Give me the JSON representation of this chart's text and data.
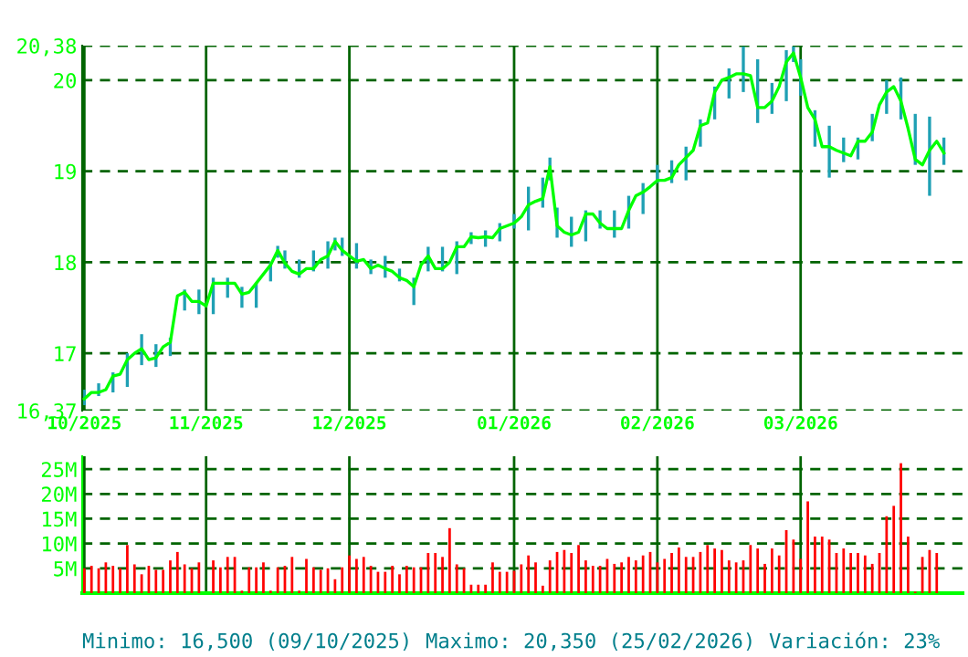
{
  "chart_data": [
    {
      "type": "line",
      "ylim": [
        16.37,
        20.38
      ],
      "grid": true,
      "categories": [
        "10/2025",
        null,
        null,
        null,
        null,
        null,
        null,
        null,
        null,
        null,
        null,
        null,
        null,
        null,
        null,
        null,
        null,
        "11/2025",
        null,
        null,
        null,
        null,
        null,
        null,
        null,
        null,
        null,
        null,
        null,
        null,
        null,
        null,
        null,
        null,
        null,
        null,
        null,
        "12/2025",
        null,
        null,
        null,
        null,
        null,
        null,
        null,
        null,
        null,
        null,
        null,
        null,
        null,
        null,
        null,
        null,
        null,
        null,
        null,
        null,
        null,
        null,
        "01/2026",
        null,
        null,
        null,
        null,
        null,
        null,
        null,
        null,
        null,
        null,
        null,
        null,
        null,
        null,
        null,
        null,
        null,
        null,
        null,
        "02/2026",
        null,
        null,
        null,
        null,
        null,
        null,
        null,
        null,
        null,
        null,
        null,
        null,
        null,
        null,
        null,
        null,
        null,
        null,
        null,
        "03/2026",
        null,
        null,
        null,
        null,
        null,
        null,
        null,
        null,
        null,
        null,
        null,
        null,
        null,
        null,
        null,
        null,
        null,
        null,
        null,
        null
      ],
      "yticks": [
        {
          "value": 16.37,
          "label": "16,37"
        },
        17,
        18,
        19,
        20,
        {
          "value": 20.38,
          "label": "20,38"
        }
      ],
      "series": [
        {
          "color": "#00ff00",
          "values": [
            16.5,
            16.57,
            16.57,
            16.6,
            16.75,
            16.77,
            16.93,
            17.0,
            17.05,
            16.93,
            16.95,
            17.07,
            17.12,
            17.63,
            17.67,
            17.57,
            17.57,
            17.52,
            17.77,
            17.77,
            17.77,
            17.77,
            17.65,
            17.67,
            17.77,
            17.87,
            17.97,
            18.13,
            17.99,
            17.9,
            17.87,
            17.93,
            17.93,
            18.03,
            18.07,
            18.23,
            18.13,
            18.07,
            18.01,
            18.03,
            17.93,
            17.97,
            17.93,
            17.9,
            17.83,
            17.8,
            17.73,
            17.97,
            18.07,
            17.93,
            17.93,
            18.0,
            18.17,
            18.17,
            18.28,
            18.27,
            18.28,
            18.27,
            18.37,
            18.4,
            18.43,
            18.5,
            18.63,
            18.67,
            18.7,
            19.05,
            18.4,
            18.33,
            18.3,
            18.33,
            18.53,
            18.53,
            18.43,
            18.37,
            18.37,
            18.37,
            18.57,
            18.73,
            18.77,
            18.83,
            18.9,
            18.9,
            18.93,
            19.07,
            19.15,
            19.23,
            19.5,
            19.53,
            19.87,
            20.0,
            20.03,
            20.07,
            20.07,
            20.05,
            19.7,
            19.7,
            19.77,
            19.93,
            20.2,
            20.3,
            20.03,
            19.7,
            19.57,
            19.27,
            19.27,
            19.23,
            19.2,
            19.17,
            19.33,
            19.33,
            19.43,
            19.73,
            19.87,
            19.93,
            19.77,
            19.47,
            19.13,
            19.07,
            19.23,
            19.33,
            19.2
          ],
          "errors": [
            [
              16.43,
              16.6
            ],
            null,
            [
              16.53,
              16.67
            ],
            null,
            [
              16.57,
              16.79
            ],
            null,
            [
              16.63,
              17.0
            ],
            null,
            [
              16.87,
              17.21
            ],
            null,
            [
              16.85,
              17.1
            ],
            null,
            [
              16.97,
              17.17
            ],
            null,
            [
              17.47,
              17.7
            ],
            null,
            [
              17.43,
              17.7
            ],
            null,
            [
              17.43,
              17.83
            ],
            null,
            [
              17.61,
              17.83
            ],
            null,
            [
              17.5,
              17.73
            ],
            null,
            [
              17.5,
              17.77
            ],
            null,
            [
              17.79,
              18.0
            ],
            [
              18.05,
              18.18
            ],
            [
              17.93,
              18.13
            ],
            null,
            [
              17.83,
              18.03
            ],
            null,
            [
              17.9,
              18.13
            ],
            null,
            [
              17.93,
              18.23
            ],
            [
              18.13,
              18.27
            ],
            [
              18.07,
              18.27
            ],
            null,
            [
              17.93,
              18.21
            ],
            null,
            [
              17.87,
              18.03
            ],
            null,
            [
              17.83,
              18.07
            ],
            null,
            [
              17.79,
              17.93
            ],
            null,
            [
              17.53,
              17.83
            ],
            null,
            [
              17.9,
              18.17
            ],
            null,
            [
              17.9,
              18.17
            ],
            null,
            [
              17.87,
              18.23
            ],
            null,
            [
              18.2,
              18.33
            ],
            null,
            [
              18.17,
              18.35
            ],
            null,
            [
              18.23,
              18.43
            ],
            null,
            [
              18.37,
              18.53
            ],
            null,
            [
              18.35,
              18.83
            ],
            null,
            [
              18.6,
              18.93
            ],
            [
              18.9,
              19.15
            ],
            [
              18.27,
              18.6
            ],
            null,
            [
              18.17,
              18.5
            ],
            null,
            [
              18.23,
              18.57
            ],
            null,
            [
              18.37,
              18.57
            ],
            null,
            [
              18.27,
              18.57
            ],
            null,
            [
              18.37,
              18.73
            ],
            null,
            [
              18.53,
              18.87
            ],
            null,
            [
              18.87,
              19.07
            ],
            null,
            [
              18.87,
              19.12
            ],
            null,
            [
              18.9,
              19.27
            ],
            null,
            [
              19.27,
              19.57
            ],
            null,
            [
              19.57,
              19.93
            ],
            null,
            [
              19.8,
              20.13
            ],
            null,
            [
              19.87,
              20.37
            ],
            null,
            [
              19.53,
              20.23
            ],
            null,
            [
              19.63,
              19.97
            ],
            null,
            [
              19.77,
              20.33
            ],
            [
              20.2,
              20.37
            ],
            [
              19.83,
              20.23
            ],
            null,
            [
              19.27,
              19.67
            ],
            null,
            [
              18.93,
              19.5
            ],
            null,
            [
              19.1,
              19.37
            ],
            null,
            [
              19.13,
              19.37
            ],
            null,
            [
              19.33,
              19.63
            ],
            null,
            [
              19.63,
              20.0
            ],
            null,
            [
              19.57,
              20.03
            ],
            null,
            [
              19.07,
              19.63
            ],
            null,
            [
              18.73,
              19.6
            ],
            null,
            [
              19.07,
              19.37
            ]
          ]
        }
      ]
    },
    {
      "type": "bar",
      "ylim": [
        0,
        27.6
      ],
      "grid": true,
      "tick_labels": "y",
      "categories": [
        null,
        null,
        null,
        null,
        null,
        null,
        null,
        null,
        null,
        null,
        null,
        null,
        null,
        null,
        null,
        null,
        null,
        null,
        null,
        null,
        null,
        null,
        null,
        null,
        null,
        null,
        null,
        null,
        null,
        null,
        null,
        null,
        null,
        null,
        null,
        null,
        null,
        null,
        null,
        null,
        null,
        null,
        null,
        null,
        null,
        null,
        null,
        null,
        null,
        null,
        null,
        null,
        null,
        null,
        null,
        null,
        null,
        null,
        null,
        null,
        null,
        null,
        null,
        null,
        null,
        null,
        null,
        null,
        null,
        null,
        null,
        null,
        null,
        null,
        null,
        null,
        null,
        null,
        null,
        null,
        null,
        null,
        null,
        null,
        null,
        null,
        null,
        null,
        null,
        null,
        null,
        null,
        null,
        null,
        null,
        null,
        null,
        null,
        null,
        null,
        null,
        null,
        null,
        null,
        null,
        null,
        null,
        null,
        null,
        null,
        null,
        null,
        null,
        null,
        null,
        null,
        null,
        null,
        null,
        null,
        null
      ],
      "yticks": [
        {
          "value": 5,
          "label": "5M"
        },
        {
          "value": 10,
          "label": "10M"
        },
        {
          "value": 15,
          "label": "15M"
        },
        {
          "value": 20,
          "label": "20M"
        },
        {
          "value": 25,
          "label": "25M"
        }
      ],
      "annotations": [
        "Minimo: 16,500 (09/10/2025)",
        "Maximo: 20,350 (25/02/2026)",
        "Variación: 23%"
      ],
      "series": [
        {
          "color": "#ff0000",
          "values": [
            5,
            5.5,
            5,
            6.2,
            5.5,
            5,
            9.7,
            5.8,
            3.8,
            5.5,
            4.7,
            4.7,
            6.6,
            8.3,
            5.8,
            5,
            6.2,
            null,
            6.6,
            5.2,
            7.3,
            7.3,
            0.5,
            5.2,
            5.2,
            6.2,
            0.5,
            5.2,
            5.5,
            7.3,
            0.5,
            6.9,
            5.2,
            4.7,
            5,
            2.8,
            5.2,
            7.6,
            6.9,
            7.3,
            5.5,
            4.3,
            4.3,
            5.5,
            3.8,
            5.5,
            5.2,
            5.2,
            8.1,
            8.1,
            7.3,
            13.1,
            5.8,
            5,
            1.7,
            1.7,
            1.7,
            6.2,
            4.3,
            4.3,
            4.5,
            5.8,
            7.6,
            6.2,
            1.5,
            6.6,
            8.3,
            8.7,
            8.1,
            9.7,
            6.6,
            5.5,
            5.5,
            6.9,
            5.9,
            6.2,
            7.3,
            6.6,
            7.6,
            8.3,
            6.2,
            6.9,
            8.1,
            9.2,
            7.3,
            7.3,
            8.3,
            9.7,
            9,
            8.7,
            6.6,
            6.2,
            6.6,
            9.7,
            9,
            5.9,
            9,
            7.6,
            12.7,
            10.8,
            6.9,
            18.5,
            11.4,
            11.4,
            10.8,
            8.1,
            9,
            8.1,
            8.1,
            7.6,
            5.9,
            8.1,
            15.5,
            17.6,
            26.2,
            11.4,
            0.3,
            7.3,
            8.7,
            8.1,
            null
          ]
        }
      ]
    }
  ]
}
